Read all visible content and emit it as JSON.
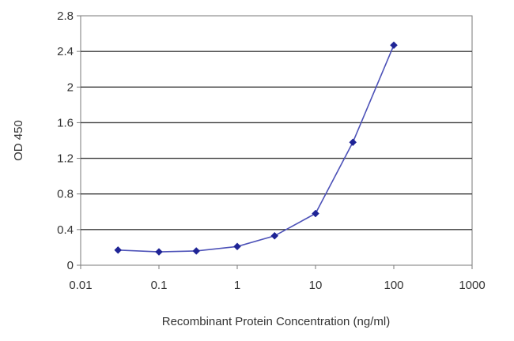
{
  "chart_data": {
    "type": "line",
    "title": "",
    "xlabel": "Recombinant Protein Concentration (ng/ml)",
    "ylabel": "OD 450",
    "x_scale": "log",
    "xlim": [
      0.01,
      1000
    ],
    "ylim": [
      0,
      2.8
    ],
    "x_ticks": [
      "0.01",
      "0.1",
      "1",
      "10",
      "100",
      "1000"
    ],
    "y_ticks": [
      "0",
      "0.4",
      "0.8",
      "1.2",
      "1.6",
      "2",
      "2.4",
      "2.8"
    ],
    "grid": "horizontal",
    "legend": "none",
    "series": [
      {
        "color": "#4d52b8",
        "marker_color": "#1f2496",
        "x": [
          0.03,
          0.1,
          0.3,
          1,
          3,
          10,
          30,
          100
        ],
        "y": [
          0.17,
          0.15,
          0.16,
          0.21,
          0.33,
          0.58,
          1.38,
          2.47
        ]
      }
    ]
  }
}
